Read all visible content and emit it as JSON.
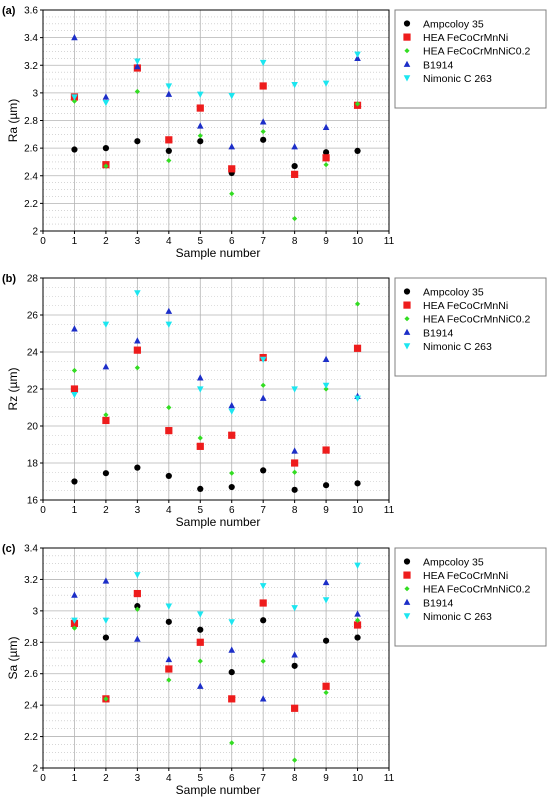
{
  "chart_data": [
    {
      "type": "scatter",
      "panel_label": "(a)",
      "title": "",
      "xlabel": "Sample number",
      "ylabel": "Ra (µm)",
      "xlim": [
        0,
        11
      ],
      "ylim": [
        2,
        3.6
      ],
      "xticks": [
        0,
        1,
        2,
        3,
        4,
        5,
        6,
        7,
        8,
        9,
        10,
        11
      ],
      "yticks": [
        2,
        2.2,
        2.4,
        2.6,
        2.8,
        3,
        3.2,
        3.4,
        3.6
      ],
      "grid": true,
      "legend_position": "right",
      "x": [
        1,
        2,
        3,
        4,
        5,
        6,
        7,
        8,
        9,
        10
      ],
      "series": [
        {
          "name": "Ampcoloy 35",
          "marker": "circle",
          "color": "#000000",
          "values": [
            2.59,
            2.6,
            2.65,
            2.58,
            2.65,
            2.42,
            2.66,
            2.47,
            2.57,
            2.58
          ]
        },
        {
          "name": "HEA FeCoCrMnNi",
          "marker": "square",
          "color": "#ee1c1c",
          "values": [
            2.97,
            2.48,
            3.18,
            2.66,
            2.89,
            2.45,
            3.05,
            2.41,
            2.53,
            2.91
          ]
        },
        {
          "name": "HEA FeCoCrMnNiC0.2",
          "marker": "diamond",
          "color": "#33dd22",
          "values": [
            2.94,
            2.47,
            3.01,
            2.51,
            2.69,
            2.27,
            2.72,
            2.09,
            2.48,
            2.92
          ]
        },
        {
          "name": "B1914",
          "marker": "triangle-up",
          "color": "#1c2ec8",
          "values": [
            3.4,
            2.97,
            3.19,
            2.99,
            2.76,
            2.61,
            2.79,
            2.61,
            2.75,
            3.25
          ]
        },
        {
          "name": "Nimonic C 263",
          "marker": "triangle-down",
          "color": "#1ce6f0",
          "values": [
            2.97,
            2.93,
            3.23,
            3.05,
            2.99,
            2.98,
            3.22,
            3.06,
            3.07,
            3.28
          ]
        }
      ]
    },
    {
      "type": "scatter",
      "panel_label": "(b)",
      "title": "",
      "xlabel": "Sample number",
      "ylabel": "Rz (µm)",
      "xlim": [
        0,
        11
      ],
      "ylim": [
        16,
        28
      ],
      "xticks": [
        0,
        1,
        2,
        3,
        4,
        5,
        6,
        7,
        8,
        9,
        10,
        11
      ],
      "yticks": [
        16,
        18,
        20,
        22,
        24,
        26,
        28
      ],
      "grid": true,
      "legend_position": "right",
      "x": [
        1,
        2,
        3,
        4,
        5,
        6,
        7,
        8,
        9,
        10
      ],
      "series": [
        {
          "name": "Ampcoloy 35",
          "marker": "circle",
          "color": "#000000",
          "values": [
            17.0,
            17.45,
            17.75,
            17.3,
            16.6,
            16.7,
            17.6,
            16.55,
            16.8,
            16.9
          ]
        },
        {
          "name": "HEA FeCoCrMnNi",
          "marker": "square",
          "color": "#ee1c1c",
          "values": [
            22.0,
            20.3,
            24.1,
            19.75,
            18.9,
            19.5,
            23.7,
            18.0,
            18.7,
            24.2
          ]
        },
        {
          "name": "HEA FeCoCrMnNiC0.2",
          "marker": "diamond",
          "color": "#33dd22",
          "values": [
            23.0,
            20.6,
            23.15,
            21.0,
            19.35,
            17.45,
            22.2,
            17.5,
            22.0,
            26.6
          ]
        },
        {
          "name": "B1914",
          "marker": "triangle-up",
          "color": "#1c2ec8",
          "values": [
            25.25,
            23.2,
            24.6,
            26.2,
            22.6,
            21.1,
            21.5,
            18.65,
            23.6,
            21.6
          ]
        },
        {
          "name": "Nimonic C 263",
          "marker": "triangle-down",
          "color": "#1ce6f0",
          "values": [
            21.7,
            25.5,
            27.2,
            25.5,
            22.0,
            20.8,
            23.6,
            22.0,
            22.2,
            21.5
          ]
        }
      ]
    },
    {
      "type": "scatter",
      "panel_label": "(c)",
      "title": "",
      "xlabel": "Sample number",
      "ylabel": "Sa (µm)",
      "xlim": [
        0,
        11
      ],
      "ylim": [
        2,
        3.4
      ],
      "xticks": [
        0,
        1,
        2,
        3,
        4,
        5,
        6,
        7,
        8,
        9,
        10,
        11
      ],
      "yticks": [
        2,
        2.2,
        2.4,
        2.6,
        2.8,
        3,
        3.2,
        3.4
      ],
      "grid": true,
      "legend_position": "right",
      "x": [
        1,
        2,
        3,
        4,
        5,
        6,
        7,
        8,
        9,
        10
      ],
      "series": [
        {
          "name": "Ampcoloy 35",
          "marker": "circle",
          "color": "#000000",
          "values": [
            2.91,
            2.83,
            3.03,
            2.93,
            2.88,
            2.61,
            2.94,
            2.65,
            2.81,
            2.83
          ]
        },
        {
          "name": "HEA FeCoCrMnNi",
          "marker": "square",
          "color": "#ee1c1c",
          "values": [
            2.92,
            2.44,
            3.11,
            2.63,
            2.8,
            2.44,
            3.05,
            2.38,
            2.52,
            2.91
          ]
        },
        {
          "name": "HEA FeCoCrMnNiC0.2",
          "marker": "diamond",
          "color": "#33dd22",
          "values": [
            2.89,
            2.44,
            3.01,
            2.56,
            2.68,
            2.16,
            2.68,
            2.05,
            2.48,
            2.94
          ]
        },
        {
          "name": "B1914",
          "marker": "triangle-up",
          "color": "#1c2ec8",
          "values": [
            3.1,
            3.19,
            2.82,
            2.69,
            2.52,
            2.75,
            2.44,
            2.72,
            3.18,
            2.98
          ]
        },
        {
          "name": "Nimonic C 263",
          "marker": "triangle-down",
          "color": "#1ce6f0",
          "values": [
            2.94,
            2.94,
            3.23,
            3.03,
            2.98,
            2.93,
            3.16,
            3.02,
            3.07,
            3.29
          ]
        }
      ]
    }
  ]
}
